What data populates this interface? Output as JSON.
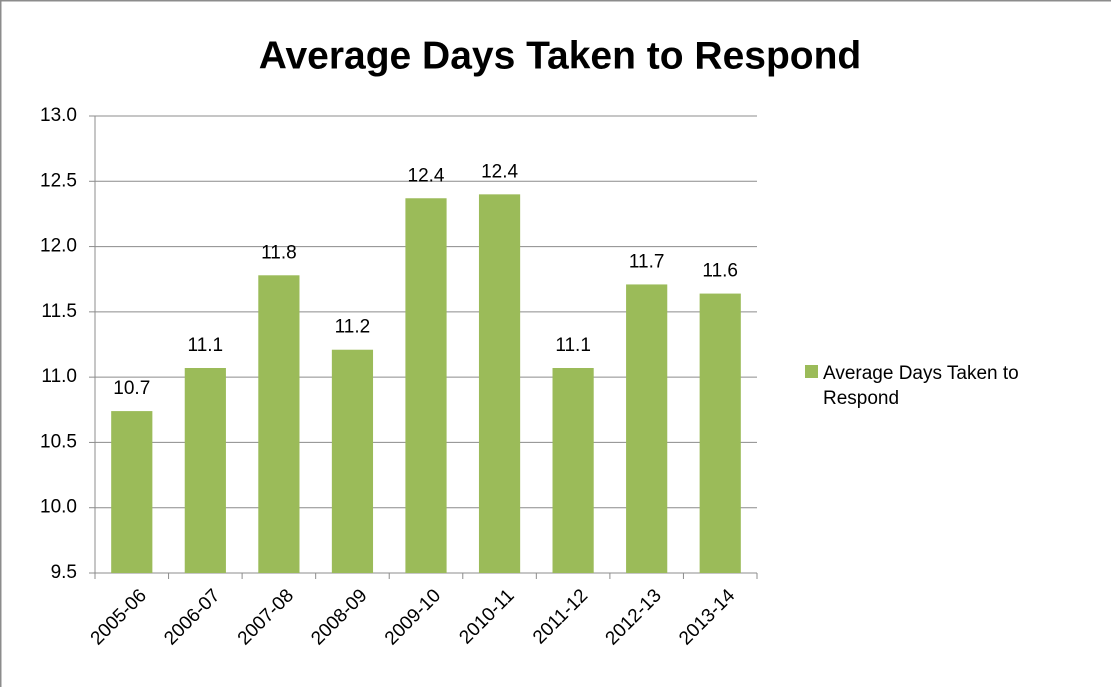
{
  "chart_data": {
    "type": "bar",
    "title": "Average Days Taken to Respond",
    "categories": [
      "2005-06",
      "2006-07",
      "2007-08",
      "2008-09",
      "2009-10",
      "2010-11",
      "2011-12",
      "2012-13",
      "2013-14"
    ],
    "series": [
      {
        "name": "Average Days Taken to Respond",
        "color": "#9bbb59",
        "values": [
          10.74,
          11.07,
          11.78,
          11.21,
          12.37,
          12.4,
          11.07,
          11.71,
          11.64
        ],
        "value_labels": [
          "10.7",
          "11.1",
          "11.8",
          "11.2",
          "12.4",
          "12.4",
          "11.1",
          "11.7",
          "11.6"
        ]
      }
    ],
    "ylim": [
      9.5,
      13.0
    ],
    "yticks": [
      9.5,
      {
        "value": 10,
        "label": "10.0"
      },
      10.5,
      {
        "value": 11,
        "label": "11.0"
      },
      11.5,
      {
        "value": 12,
        "label": "12.0"
      },
      12.5,
      {
        "value": 13,
        "label": "13.0"
      }
    ],
    "grid": true,
    "legend": "right"
  }
}
